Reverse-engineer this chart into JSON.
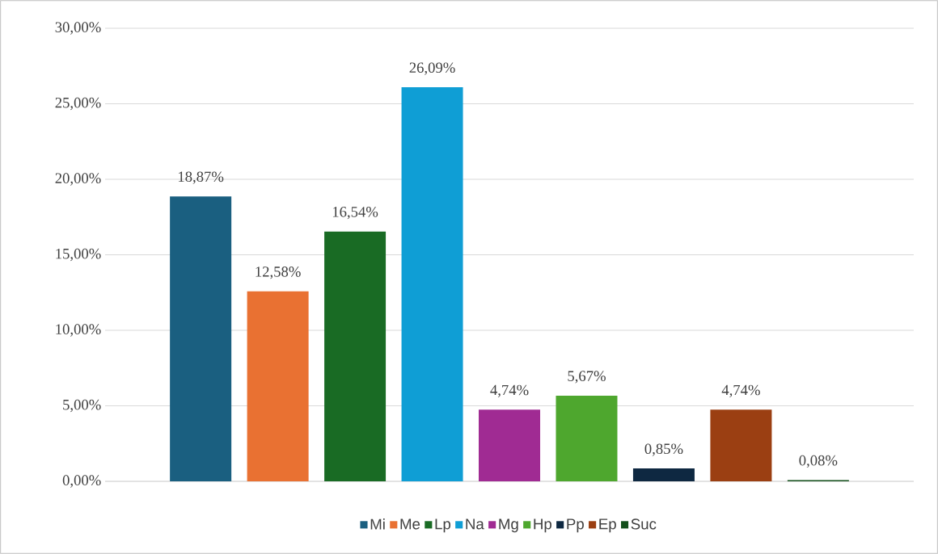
{
  "chart_data": {
    "type": "bar",
    "categories": [
      null
    ],
    "series": [
      {
        "name": "Mi",
        "color": "#1a5f80",
        "values": [
          18.87
        ],
        "value_labels": [
          "18,87%"
        ]
      },
      {
        "name": "Me",
        "color": "#e97132",
        "values": [
          12.58
        ],
        "value_labels": [
          "12,58%"
        ]
      },
      {
        "name": "Lp",
        "color": "#196b24",
        "values": [
          16.54
        ],
        "value_labels": [
          "16,54%"
        ]
      },
      {
        "name": "Na",
        "color": "#0f9ed5",
        "values": [
          26.09
        ],
        "value_labels": [
          "26,09%"
        ]
      },
      {
        "name": "Mg",
        "color": "#a02b93",
        "values": [
          4.74
        ],
        "value_labels": [
          "4,74%"
        ]
      },
      {
        "name": "Hp",
        "color": "#4ea72e",
        "values": [
          5.67
        ],
        "value_labels": [
          "5,67%"
        ]
      },
      {
        "name": "Pp",
        "color": "#0e2841",
        "values": [
          0.85
        ],
        "value_labels": [
          "0,85%"
        ]
      },
      {
        "name": "Ep",
        "color": "#9b3f12",
        "values": [
          4.74
        ],
        "value_labels": [
          "4,74%"
        ]
      },
      {
        "name": "Suc",
        "color": "#124f1a",
        "values": [
          0.08
        ],
        "value_labels": [
          "0,08%"
        ]
      }
    ],
    "ylim": [
      0,
      30
    ],
    "yticks": [
      {
        "value": 0,
        "label": "0,00%"
      },
      {
        "value": 5,
        "label": "5,00%"
      },
      {
        "value": 10,
        "label": "10,00%"
      },
      {
        "value": 15,
        "label": "15,00%"
      },
      {
        "value": 20,
        "label": "20,00%"
      },
      {
        "value": 25,
        "label": "25,00%"
      },
      {
        "value": 30,
        "label": "30,00%"
      }
    ],
    "grid": "y",
    "legend": "bottom"
  }
}
